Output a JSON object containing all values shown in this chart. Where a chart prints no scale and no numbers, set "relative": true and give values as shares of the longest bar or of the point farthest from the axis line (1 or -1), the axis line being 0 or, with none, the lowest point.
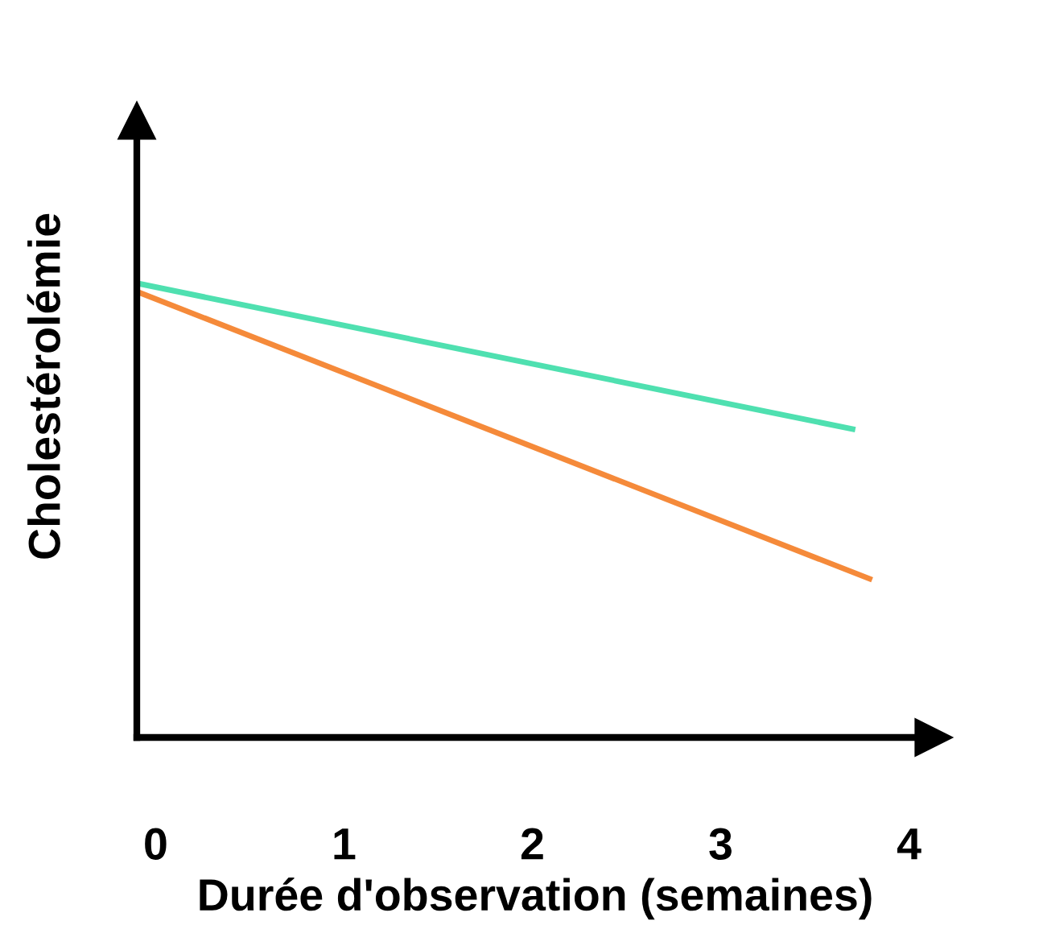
{
  "chart_data": {
    "type": "line",
    "relative": true,
    "xlabel": "Durée d'observation (semaines)",
    "ylabel": "Cholestérolémie",
    "xlim": [
      -0.1,
      4.13
    ],
    "xticks": [
      0,
      1,
      2,
      3,
      4
    ],
    "series": [
      {
        "color": "#4fe0b0",
        "x": [
          -0.08,
          3.7
        ],
        "values": [
          1,
          0.68
        ]
      },
      {
        "color": "#f58a3a",
        "x": [
          -0.08,
          3.79
        ],
        "values": [
          0.98,
          0.35
        ]
      }
    ],
    "grid": false,
    "marker": "none",
    "line_style": "solid"
  }
}
